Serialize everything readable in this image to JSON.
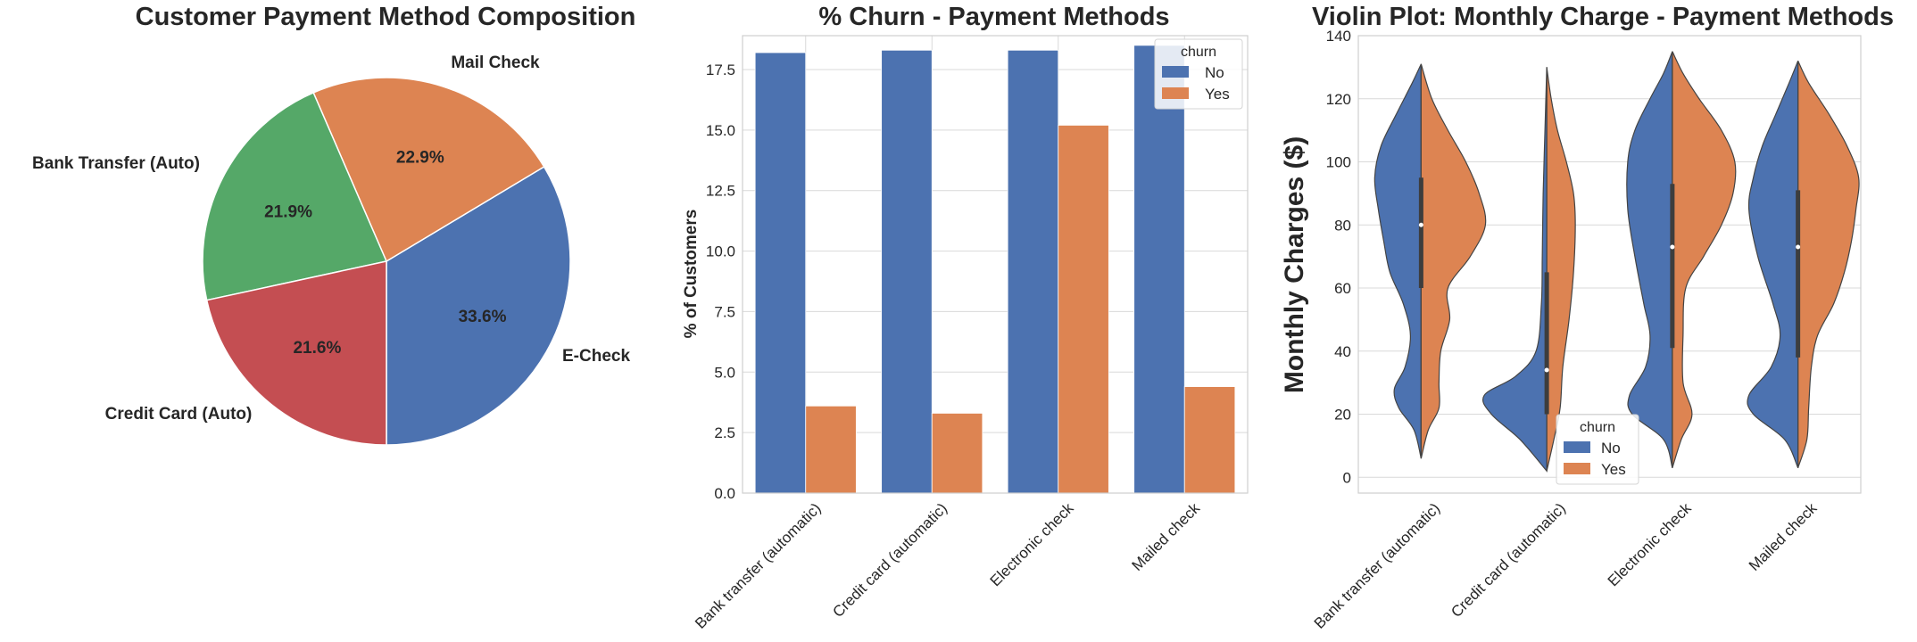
{
  "chart_data": [
    {
      "type": "pie",
      "title": "Customer Payment Method Composition",
      "labels": [
        "E-Check",
        "Mail Check",
        "Bank Transfer (Auto)",
        "Credit Card (Auto)"
      ],
      "values": [
        33.6,
        22.9,
        21.9,
        21.6
      ],
      "value_labels": [
        "33.6%",
        "22.9%",
        "21.9%",
        "21.6%"
      ],
      "colors": [
        "#4c72b0",
        "#dd8452",
        "#55a868",
        "#c44e52"
      ]
    },
    {
      "type": "bar",
      "title": "% Churn - Payment Methods",
      "ylabel": "% of Customers",
      "xlabel": "",
      "categories": [
        "Bank transfer (automatic)",
        "Credit card (automatic)",
        "Electronic check",
        "Mailed check"
      ],
      "series": [
        {
          "name": "No",
          "values": [
            18.2,
            18.3,
            18.3,
            18.5
          ],
          "color": "#4c72b0"
        },
        {
          "name": "Yes",
          "values": [
            3.6,
            3.3,
            15.2,
            4.4
          ],
          "color": "#dd8452"
        }
      ],
      "ylim": [
        0,
        18.5
      ],
      "yticks": [
        "0.0",
        "2.5",
        "5.0",
        "7.5",
        "10.0",
        "12.5",
        "15.0",
        "17.5"
      ],
      "legend": {
        "title": "churn",
        "placement": "top-right"
      }
    },
    {
      "type": "violin",
      "title": "Violin Plot: Monthly Charge - Payment Methods",
      "ylabel": "Monthly Charges ($)",
      "xlabel": "",
      "categories": [
        "Bank transfer (automatic)",
        "Credit card (automatic)",
        "Electronic check",
        "Mailed check"
      ],
      "series": [
        {
          "name": "No",
          "color": "#4c72b0"
        },
        {
          "name": "Yes",
          "color": "#dd8452"
        }
      ],
      "ylim": [
        -5,
        140
      ],
      "yticks": [
        "0",
        "20",
        "40",
        "60",
        "80",
        "100",
        "120",
        "140"
      ],
      "legend": {
        "title": "churn",
        "placement": "lower-center"
      },
      "violins": [
        {
          "range": [
            6,
            131
          ],
          "median": 80,
          "q1": 60,
          "q3": 95,
          "no_profile": [
            [
              6,
              0.0
            ],
            [
              15,
              0.08
            ],
            [
              22,
              0.25
            ],
            [
              28,
              0.3
            ],
            [
              35,
              0.18
            ],
            [
              45,
              0.12
            ],
            [
              55,
              0.2
            ],
            [
              65,
              0.35
            ],
            [
              75,
              0.42
            ],
            [
              85,
              0.48
            ],
            [
              95,
              0.52
            ],
            [
              105,
              0.45
            ],
            [
              115,
              0.28
            ],
            [
              125,
              0.1
            ],
            [
              131,
              0.0
            ]
          ],
          "yes_profile": [
            [
              6,
              0.0
            ],
            [
              15,
              0.08
            ],
            [
              22,
              0.2
            ],
            [
              30,
              0.2
            ],
            [
              40,
              0.22
            ],
            [
              50,
              0.32
            ],
            [
              60,
              0.3
            ],
            [
              70,
              0.55
            ],
            [
              80,
              0.72
            ],
            [
              90,
              0.65
            ],
            [
              100,
              0.5
            ],
            [
              110,
              0.3
            ],
            [
              120,
              0.12
            ],
            [
              131,
              0.0
            ]
          ]
        },
        {
          "range": [
            2,
            130
          ],
          "median": 34,
          "q1": 20,
          "q3": 65,
          "no_profile": [
            [
              2,
              0.0
            ],
            [
              12,
              0.3
            ],
            [
              20,
              0.62
            ],
            [
              26,
              0.7
            ],
            [
              32,
              0.35
            ],
            [
              40,
              0.12
            ],
            [
              55,
              0.06
            ],
            [
              70,
              0.05
            ],
            [
              90,
              0.04
            ],
            [
              110,
              0.02
            ],
            [
              130,
              0.0
            ]
          ],
          "yes_profile": [
            [
              2,
              0.0
            ],
            [
              12,
              0.08
            ],
            [
              22,
              0.15
            ],
            [
              35,
              0.18
            ],
            [
              50,
              0.25
            ],
            [
              65,
              0.3
            ],
            [
              80,
              0.32
            ],
            [
              90,
              0.3
            ],
            [
              100,
              0.22
            ],
            [
              110,
              0.12
            ],
            [
              120,
              0.05
            ],
            [
              130,
              0.0
            ]
          ]
        },
        {
          "range": [
            3,
            135
          ],
          "median": 73,
          "q1": 41,
          "q3": 93,
          "no_profile": [
            [
              3,
              0.0
            ],
            [
              12,
              0.1
            ],
            [
              20,
              0.45
            ],
            [
              26,
              0.48
            ],
            [
              35,
              0.3
            ],
            [
              45,
              0.25
            ],
            [
              55,
              0.32
            ],
            [
              70,
              0.42
            ],
            [
              85,
              0.5
            ],
            [
              100,
              0.5
            ],
            [
              110,
              0.42
            ],
            [
              120,
              0.25
            ],
            [
              128,
              0.1
            ],
            [
              135,
              0.0
            ]
          ],
          "yes_profile": [
            [
              3,
              0.0
            ],
            [
              12,
              0.1
            ],
            [
              20,
              0.22
            ],
            [
              30,
              0.12
            ],
            [
              45,
              0.12
            ],
            [
              60,
              0.15
            ],
            [
              70,
              0.35
            ],
            [
              80,
              0.55
            ],
            [
              90,
              0.68
            ],
            [
              100,
              0.7
            ],
            [
              110,
              0.55
            ],
            [
              120,
              0.3
            ],
            [
              128,
              0.12
            ],
            [
              135,
              0.0
            ]
          ]
        },
        {
          "range": [
            3,
            132
          ],
          "median": 73,
          "q1": 38,
          "q3": 91,
          "no_profile": [
            [
              3,
              0.0
            ],
            [
              12,
              0.15
            ],
            [
              20,
              0.5
            ],
            [
              26,
              0.55
            ],
            [
              35,
              0.3
            ],
            [
              45,
              0.2
            ],
            [
              55,
              0.28
            ],
            [
              70,
              0.45
            ],
            [
              85,
              0.55
            ],
            [
              95,
              0.5
            ],
            [
              105,
              0.4
            ],
            [
              115,
              0.25
            ],
            [
              125,
              0.1
            ],
            [
              132,
              0.0
            ]
          ],
          "yes_profile": [
            [
              3,
              0.0
            ],
            [
              12,
              0.1
            ],
            [
              22,
              0.12
            ],
            [
              35,
              0.15
            ],
            [
              45,
              0.22
            ],
            [
              55,
              0.4
            ],
            [
              65,
              0.52
            ],
            [
              75,
              0.6
            ],
            [
              85,
              0.65
            ],
            [
              95,
              0.68
            ],
            [
              105,
              0.55
            ],
            [
              115,
              0.35
            ],
            [
              125,
              0.12
            ],
            [
              132,
              0.0
            ]
          ]
        }
      ]
    }
  ]
}
